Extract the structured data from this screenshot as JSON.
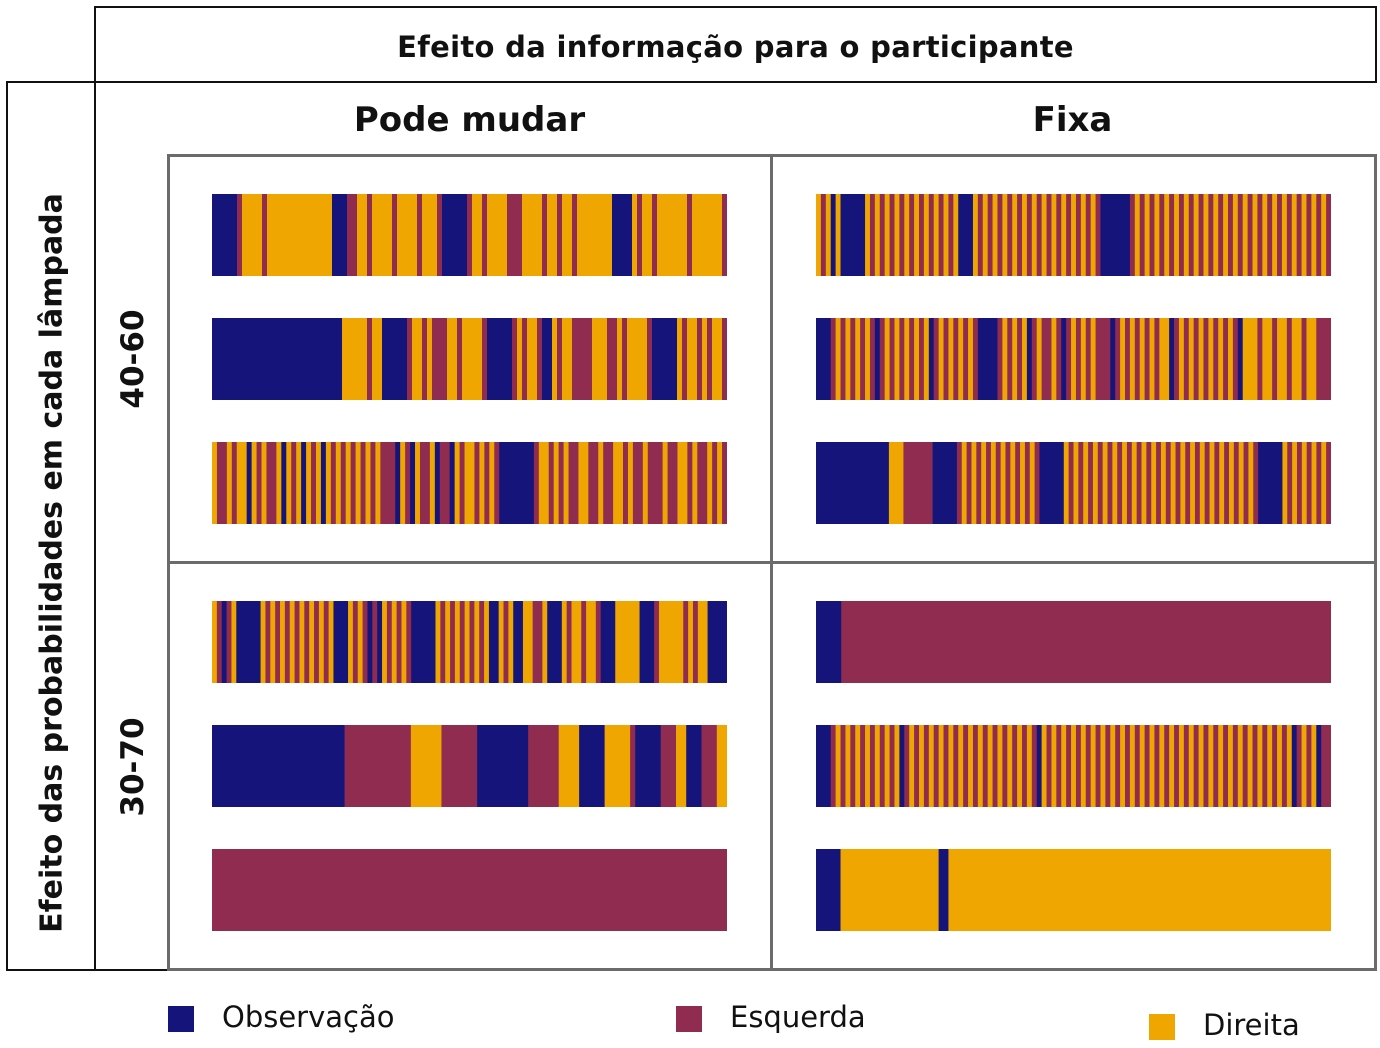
{
  "header": {
    "title": "Efeito da informação para o participante",
    "columns": [
      "Pode mudar",
      "Fixa"
    ]
  },
  "side": {
    "title": "Efeito das probabilidades em cada lâmpada",
    "rows": [
      "40-60",
      "30-70"
    ]
  },
  "colors": {
    "observacao": "#14147a",
    "esquerda": "#902c50",
    "direita": "#f0a600"
  },
  "legend": [
    {
      "key": "O",
      "label": "Observação",
      "color": "#14147a"
    },
    {
      "key": "E",
      "label": "Esquerda",
      "color": "#902c50"
    },
    {
      "key": "D",
      "label": "Direita",
      "color": "#f0a600"
    }
  ],
  "panels": [
    {
      "row": "40-60",
      "column": "Pode mudar",
      "sequences": [
        "OOOOOEDDDDEDDDDDDDDDDDDDOOOEEDDEDDDDEDDDDEDDDEOOOOOEDDEDDDDEEEDDDDEDDEDDEDDDDDDDOOOODEDDEDDDDDDEDDDDDDE",
        "OOOOOOOOOOOOOOOOOOOOOOOOOODDDDDEDDOOOOOEDDEDEEEDDEDDDDEOOOOOEDEDDEOODEDDEEEEDDDEEDEDDDDEOOOOODEDDEDEDDE",
        "DEEDEDDODEDEEDODEDODEDODEDEDEDEDEDEEEODEODEEDOEEODEDDEDEDEOOOOOOOEDDEDEDEEDDEEDEEDDEDEEDEEEDEEDDEDEEDEDE"
      ]
    },
    {
      "row": "40-60",
      "column": "Fixa",
      "sequences": [
        "DEDODOOOOODEDEDEDEDEDEDEDEDEDOOODEDEDEDEDEDEDEDEDEDEDEDEDEOOOOOOEDEDEDEDEDEDEDEDEDEDEDEDEDEDEDEDEDEDEDEDE",
        "OOOEDEDEDEDEOEDEDEDEDEDOEDEDEDEDEOOOOEDEDEDOEDEEDEOEDEDEDEEEOEDEDEDEDEDDOEDEDEDEDEDEDEODDDEDDEDDEDDEDDEEE",
        "OOOOOOOOOOOOOOODDDEEEEEEOOOOOEDEDEDEDEDEDEDEDEOOOOODEDEDEDEDEDEDEDEDEDEDEDEDEDEDEDEDEDEDEDEOOOOODEDEDEDEDE"
      ]
    },
    {
      "row": "30-70",
      "column": "Pode mudar",
      "sequences": [
        "DEOEDOOOOODEDEDEDEDEDEDEDOOODEDEOEODEDEDEOOOOODEDEDEDEDEDOODEDOODDEEDOOODEDDEDDEOOODDDDDOOOEDDDDDEDEDDOOOO",
        "OOOOOOOOOOOOOOOOOOOOOOOOOOEEEEEEEEEEEEEDDDDDDEEEEEEEOOOOOOOOOOEEEEEEDDDDOOOOODDDDDEOOOOOEEEDDOOOEEEDD",
        "EEEEEEEEEEEEEEEEEEEEEEEEEEEEEEEEEEEEEEEEEEEEEEEEEEEEEEEEEEEEEEEEEEEEEEEEEEEEEEEEEEEEEEEEEEEEEEEEEEEEEEE"
      ]
    },
    {
      "row": "30-70",
      "column": "Fixa",
      "sequences": [
        "OOOOOEEEEEEEEEEEEEEEEEEEEEEEEEEEEEEEEEEEEEEEEEEEEEEEEEEEEEEEEEEEEEEEEEEEEEEEEEEEEEEEEEEEEEEEEEEEEEEEEE",
        "OOOEDEDEDEDEDEDEDOEDEDEDEDEDEDEDEDEDEDEDEDEDEODEDEDEDEDEDEDEDEDEDEDEDEDEDEDEDEDEDEDEDEDEDEDEDEDEDOEDEDOEE",
        "OOOOODDDDDDDDDDDDDDDDDDDDOODDDDDDDDDDDDDDDDDDDDDDDDDDDDDDDDDDDDDDDDDDDDDDDDDDDDDDDDDDDDDDDDDDDDDDDDDDDDDD"
      ]
    }
  ]
}
